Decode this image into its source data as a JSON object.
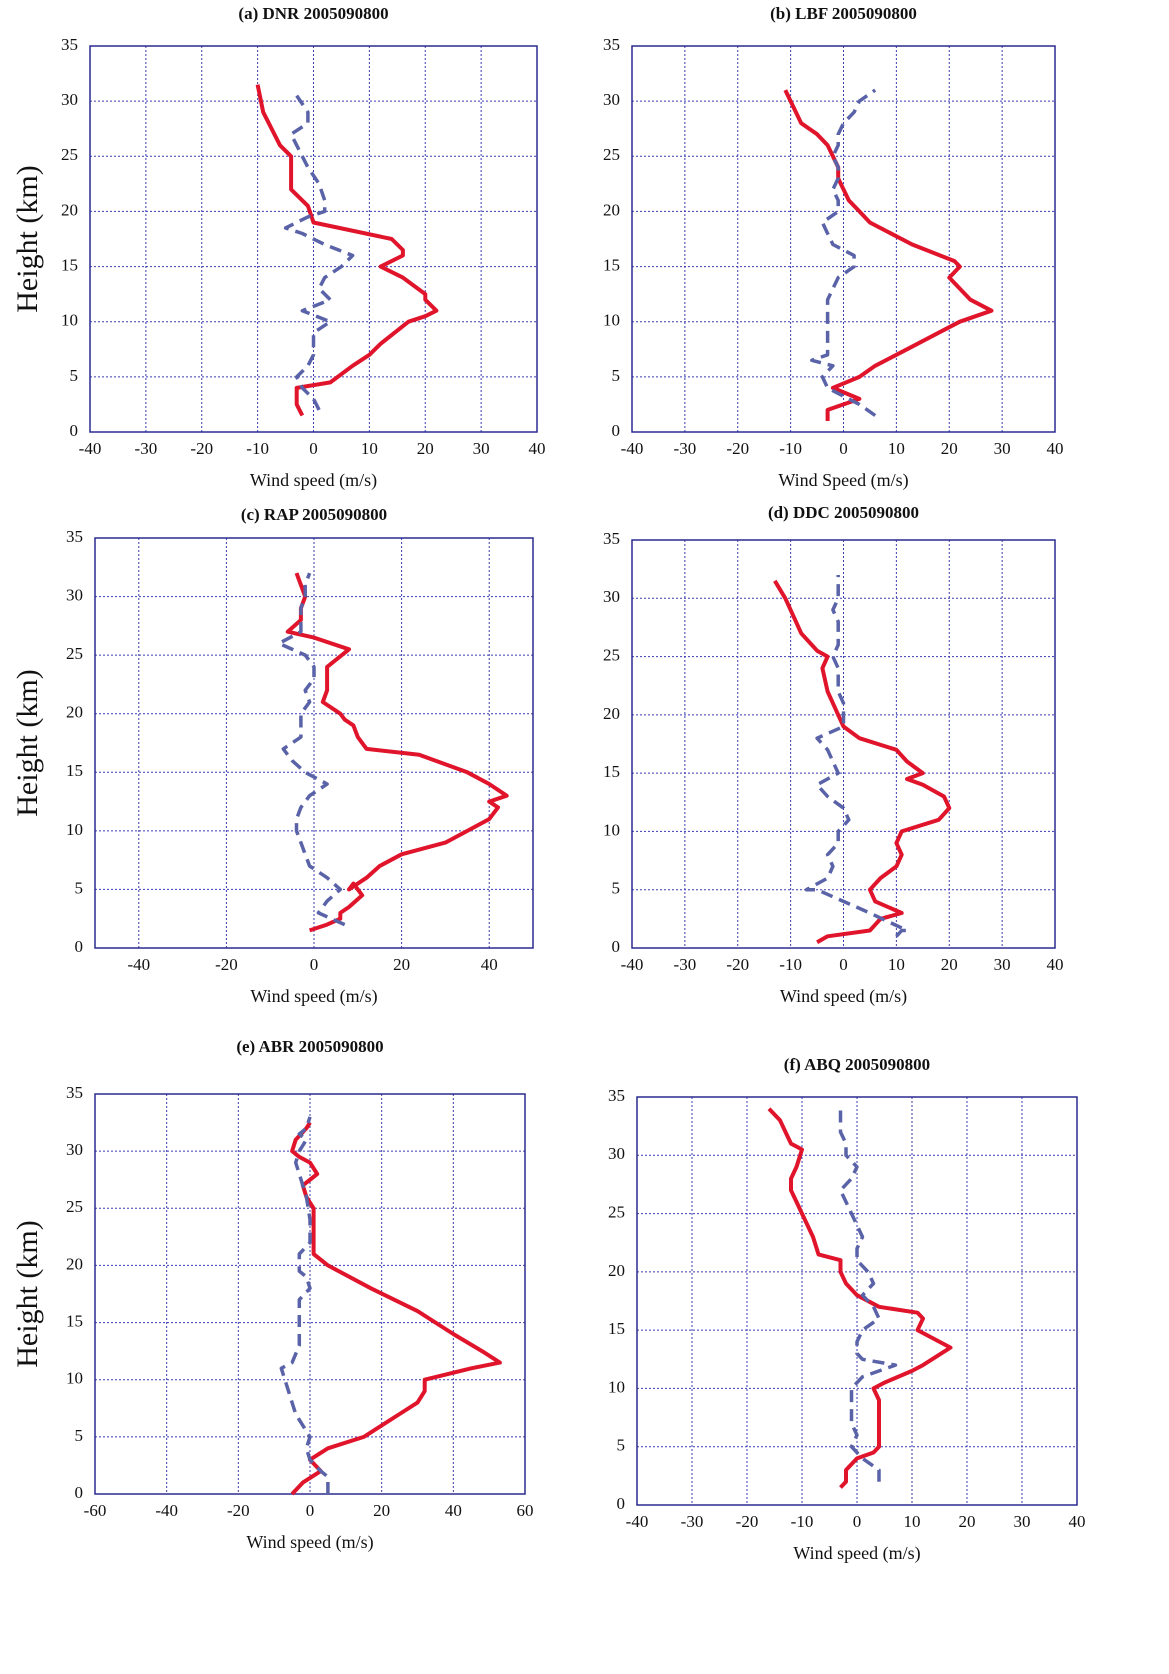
{
  "chart_data": [
    {
      "type": "line",
      "title": "(a) DNR 2005090800",
      "xlabel": "Wind speed (m/s)",
      "ylabel": "Height (km)",
      "xlim": [
        -40,
        40
      ],
      "xticks": [
        -40,
        -30,
        -20,
        -10,
        0,
        10,
        20,
        30,
        40
      ],
      "ylim": [
        0,
        35
      ],
      "yticks": [
        0,
        5,
        10,
        15,
        20,
        25,
        30,
        35
      ],
      "grid": true,
      "series": [
        {
          "color": "#e0142b",
          "dash": false,
          "x": [
            -2,
            -3,
            -3,
            3,
            7,
            10,
            12,
            17,
            20,
            22,
            20,
            20,
            16,
            12,
            16,
            16,
            14,
            0,
            -1,
            -2,
            -3,
            -4,
            -4,
            -4,
            -6,
            -8,
            -9,
            -10
          ],
          "y": [
            1.5,
            2.5,
            4,
            4.5,
            6,
            7,
            8,
            10,
            10.5,
            11,
            12,
            12.5,
            14,
            15,
            16,
            16.5,
            17.5,
            19,
            20.5,
            21,
            21.5,
            22,
            24,
            25,
            26,
            28,
            29,
            31.5
          ]
        },
        {
          "color": "#5a63a8",
          "dash": true,
          "x": [
            1,
            0,
            -2,
            -3,
            -1,
            0,
            0,
            0,
            3,
            -2,
            3,
            1,
            2,
            5,
            7,
            2,
            -2,
            -5,
            -1,
            2,
            2,
            1,
            -1,
            -2,
            -3,
            -4,
            -1,
            -1,
            -3
          ],
          "y": [
            2,
            3,
            4,
            5,
            6,
            7,
            8,
            9,
            10,
            11,
            12,
            13,
            14,
            15,
            16,
            17,
            18,
            18.5,
            19.5,
            20,
            21,
            22.5,
            24,
            25,
            26,
            27,
            28,
            29,
            30.5
          ]
        }
      ]
    },
    {
      "type": "line",
      "title": "(b) LBF 2005090800",
      "xlabel": "Wind Speed (m/s)",
      "xlim": [
        -40,
        40
      ],
      "xticks": [
        -40,
        -30,
        -20,
        -10,
        0,
        10,
        20,
        30,
        40
      ],
      "ylim": [
        0,
        35
      ],
      "yticks": [
        0,
        5,
        10,
        15,
        20,
        25,
        30,
        35
      ],
      "grid": true,
      "series": [
        {
          "color": "#e0142b",
          "dash": false,
          "x": [
            -3,
            -3,
            0,
            3,
            -2,
            3,
            6,
            10,
            14,
            18,
            22,
            28,
            24,
            22,
            20,
            22,
            21,
            13,
            5,
            3,
            1,
            0,
            -1,
            -1,
            -2,
            -3,
            -5,
            -8,
            -10,
            -11
          ],
          "y": [
            1,
            2,
            2.5,
            3,
            4,
            5,
            6,
            7,
            8,
            9,
            10,
            11,
            12,
            13,
            14,
            15,
            15.5,
            17,
            19,
            20,
            21,
            22,
            23,
            24,
            25,
            26,
            27,
            28,
            30,
            31
          ]
        },
        {
          "color": "#5a63a8",
          "dash": true,
          "x": [
            6,
            3,
            -1,
            -3,
            -4,
            -2,
            -6,
            -3,
            -3,
            -3,
            -3,
            -3,
            -2,
            -1,
            2,
            2,
            -2,
            -3,
            -4,
            -1,
            -1,
            -2,
            -1,
            -1,
            -2,
            -1,
            -1,
            0,
            2,
            3,
            6
          ],
          "y": [
            1.5,
            2.5,
            3.5,
            4,
            5,
            6,
            6.5,
            7,
            8,
            10,
            11,
            12,
            13,
            14,
            15,
            16,
            17,
            18,
            19,
            20,
            21,
            22,
            23,
            24,
            25,
            26,
            27,
            28,
            29,
            30,
            31
          ]
        }
      ]
    },
    {
      "type": "line",
      "title": "(c) RAP 2005090800",
      "xlabel": "Wind speed (m/s)",
      "ylabel": "Height (km)",
      "xlim": [
        -50,
        50
      ],
      "xticks": [
        -40,
        -20,
        0,
        20,
        40
      ],
      "ylim": [
        0,
        35
      ],
      "yticks": [
        0,
        5,
        10,
        15,
        20,
        25,
        30,
        35
      ],
      "grid": true,
      "series": [
        {
          "color": "#e0142b",
          "dash": false,
          "x": [
            -1,
            3,
            6,
            6,
            8,
            11,
            9,
            8,
            12,
            15,
            20,
            30,
            35,
            40,
            42,
            40,
            44,
            40,
            35,
            24,
            12,
            10,
            9,
            7,
            6,
            2,
            3,
            3,
            8,
            0,
            -6,
            -3,
            -3,
            -2,
            -3,
            -4
          ],
          "y": [
            1.5,
            2,
            2.5,
            3,
            3.5,
            4.5,
            5.5,
            5,
            6,
            7,
            8,
            9,
            10,
            11,
            12,
            12.5,
            13,
            14,
            15,
            16.5,
            17,
            18,
            19,
            19.5,
            20,
            21,
            22,
            24,
            25.5,
            26.5,
            27,
            28,
            29,
            30,
            31,
            32
          ]
        },
        {
          "color": "#5a63a8",
          "dash": true,
          "x": [
            7,
            1,
            3,
            6,
            3,
            -1,
            -2,
            -3,
            -4,
            -4,
            -3,
            -1,
            3,
            -2,
            -5,
            -7,
            -3,
            -3,
            -3,
            -1,
            -2,
            0,
            0,
            -2,
            -8,
            -3,
            -3,
            -3,
            -2,
            -2,
            -1
          ],
          "y": [
            2,
            3,
            4,
            5,
            6,
            7,
            8,
            9,
            10,
            11,
            12,
            13,
            14,
            15,
            16,
            17,
            18,
            19,
            20,
            21,
            22,
            23,
            24,
            25,
            26,
            27,
            28,
            29,
            30,
            31,
            32
          ]
        }
      ]
    },
    {
      "type": "line",
      "title": "(d) DDC 2005090800",
      "xlabel": "Wind speed (m/s)",
      "xlim": [
        -40,
        40
      ],
      "xticks": [
        -40,
        -30,
        -20,
        -10,
        0,
        10,
        20,
        30,
        40
      ],
      "ylim": [
        0,
        35
      ],
      "yticks": [
        0,
        5,
        10,
        15,
        20,
        25,
        30,
        35
      ],
      "grid": true,
      "series": [
        {
          "color": "#e0142b",
          "dash": false,
          "x": [
            -5,
            -3,
            5,
            6,
            7,
            11,
            6,
            5,
            7,
            10,
            11,
            10,
            11,
            18,
            20,
            19,
            15,
            12,
            15,
            12,
            10,
            3,
            0,
            -1,
            -2,
            -3,
            -4,
            -3,
            -5,
            -6,
            -8,
            -9,
            -10,
            -11,
            -13
          ],
          "y": [
            0.5,
            1,
            1.5,
            2,
            2.5,
            3,
            4,
            5,
            6,
            7,
            8,
            9,
            10,
            11,
            12,
            13,
            14,
            14.5,
            15,
            16,
            17,
            18,
            19,
            20,
            21,
            22,
            24,
            25,
            25.5,
            26,
            27,
            28,
            29,
            30,
            31.5
          ]
        },
        {
          "color": "#5a63a8",
          "dash": true,
          "x": [
            10,
            11,
            12,
            5,
            0,
            -5,
            -7,
            -3,
            -2,
            -3,
            -1,
            -1,
            1,
            0,
            -3,
            -5,
            -1,
            -2,
            -3,
            -5,
            0,
            0,
            0,
            -1,
            -1,
            -1,
            -2,
            -1,
            -1,
            -1,
            -2,
            -1,
            -1,
            -1
          ],
          "y": [
            1,
            1.5,
            1.5,
            3,
            4,
            5,
            5,
            6,
            7,
            8,
            9,
            10,
            11,
            12,
            13,
            14,
            15,
            16,
            17,
            18,
            19,
            20,
            21,
            22,
            23,
            24,
            25,
            26,
            27,
            28,
            29,
            30,
            31,
            32
          ]
        }
      ]
    },
    {
      "type": "line",
      "title": "(e) ABR 2005090800",
      "xlabel": "Wind speed (m/s)",
      "ylabel": "Height (km)",
      "xlim": [
        -60,
        60
      ],
      "xticks": [
        -60,
        -40,
        -20,
        0,
        20,
        40,
        60
      ],
      "ylim": [
        0,
        35
      ],
      "yticks": [
        0,
        5,
        10,
        15,
        20,
        25,
        30,
        35
      ],
      "grid": true,
      "series": [
        {
          "color": "#e0142b",
          "dash": false,
          "x": [
            -5,
            -2,
            3,
            0,
            5,
            15,
            20,
            25,
            30,
            32,
            32,
            45,
            53,
            48,
            40,
            30,
            17,
            5,
            1,
            1,
            1,
            -1,
            -2,
            2,
            0,
            -3,
            -5,
            -4,
            -1,
            0
          ],
          "y": [
            0,
            1,
            2,
            3,
            4,
            5,
            6,
            7,
            8,
            9,
            10,
            11,
            11.5,
            12.5,
            14,
            16,
            18,
            20,
            21,
            23,
            25,
            26,
            27,
            28,
            29,
            29.5,
            30,
            31,
            32,
            32.5
          ]
        },
        {
          "color": "#5a63a8",
          "dash": true,
          "x": [
            5,
            5,
            5,
            3,
            0,
            -1,
            0,
            -2,
            -4,
            -5,
            -6,
            -7,
            -8,
            -5,
            -3,
            -3,
            -3,
            0,
            -1,
            -3,
            -3,
            0,
            0,
            -1,
            -2,
            -3,
            -4,
            -3,
            -1,
            -3,
            -1,
            0
          ],
          "y": [
            0,
            1,
            1.5,
            2,
            3,
            4,
            5,
            6,
            7,
            8,
            9,
            10,
            11,
            11.5,
            13,
            15,
            17,
            18,
            19,
            19.5,
            21,
            22,
            24,
            26,
            27,
            28,
            29,
            30,
            31,
            31.5,
            32,
            33
          ]
        }
      ]
    },
    {
      "type": "line",
      "title": "(f) ABQ 2005090800",
      "xlabel": "Wind speed (m/s)",
      "xlim": [
        -40,
        40
      ],
      "xticks": [
        -40,
        -30,
        -20,
        -10,
        0,
        10,
        20,
        30,
        40
      ],
      "ylim": [
        0,
        35
      ],
      "yticks": [
        0,
        5,
        10,
        15,
        20,
        25,
        30,
        35
      ],
      "grid": true,
      "series": [
        {
          "color": "#e0142b",
          "dash": false,
          "x": [
            -3,
            -2,
            -2,
            -2,
            0,
            3,
            4,
            4,
            4,
            4,
            3,
            5,
            10,
            12,
            17,
            11,
            12,
            11,
            4,
            0,
            -2,
            -3,
            -3,
            -7,
            -8,
            -10,
            -11,
            -12,
            -12,
            -11,
            -10,
            -12,
            -13,
            -14,
            -16
          ],
          "y": [
            1.5,
            2,
            2.5,
            3,
            4,
            4.5,
            5,
            6,
            8,
            9,
            10,
            10.5,
            11.5,
            12,
            13.5,
            15,
            16,
            16.5,
            17,
            18,
            19,
            20,
            21,
            21.5,
            23,
            25,
            26,
            27,
            28,
            29,
            30.5,
            31,
            32,
            33,
            34
          ]
        },
        {
          "color": "#5a63a8",
          "dash": true,
          "x": [
            4,
            4,
            1,
            -1,
            0,
            -1,
            -1,
            -1,
            -1,
            1,
            7,
            1,
            0,
            0,
            1,
            4,
            3,
            1,
            3,
            2,
            0,
            0,
            1,
            0,
            -1,
            -2,
            -3,
            -1,
            0,
            -2,
            -2,
            -3,
            -3,
            -3
          ],
          "y": [
            2,
            3,
            4,
            5,
            6,
            7,
            8,
            9,
            10,
            11,
            12,
            12.5,
            13,
            14,
            15,
            16,
            17,
            18,
            19,
            20,
            21,
            22,
            23,
            24,
            25,
            26,
            27,
            28,
            29,
            30,
            31,
            32,
            33,
            34
          ]
        }
      ]
    }
  ]
}
